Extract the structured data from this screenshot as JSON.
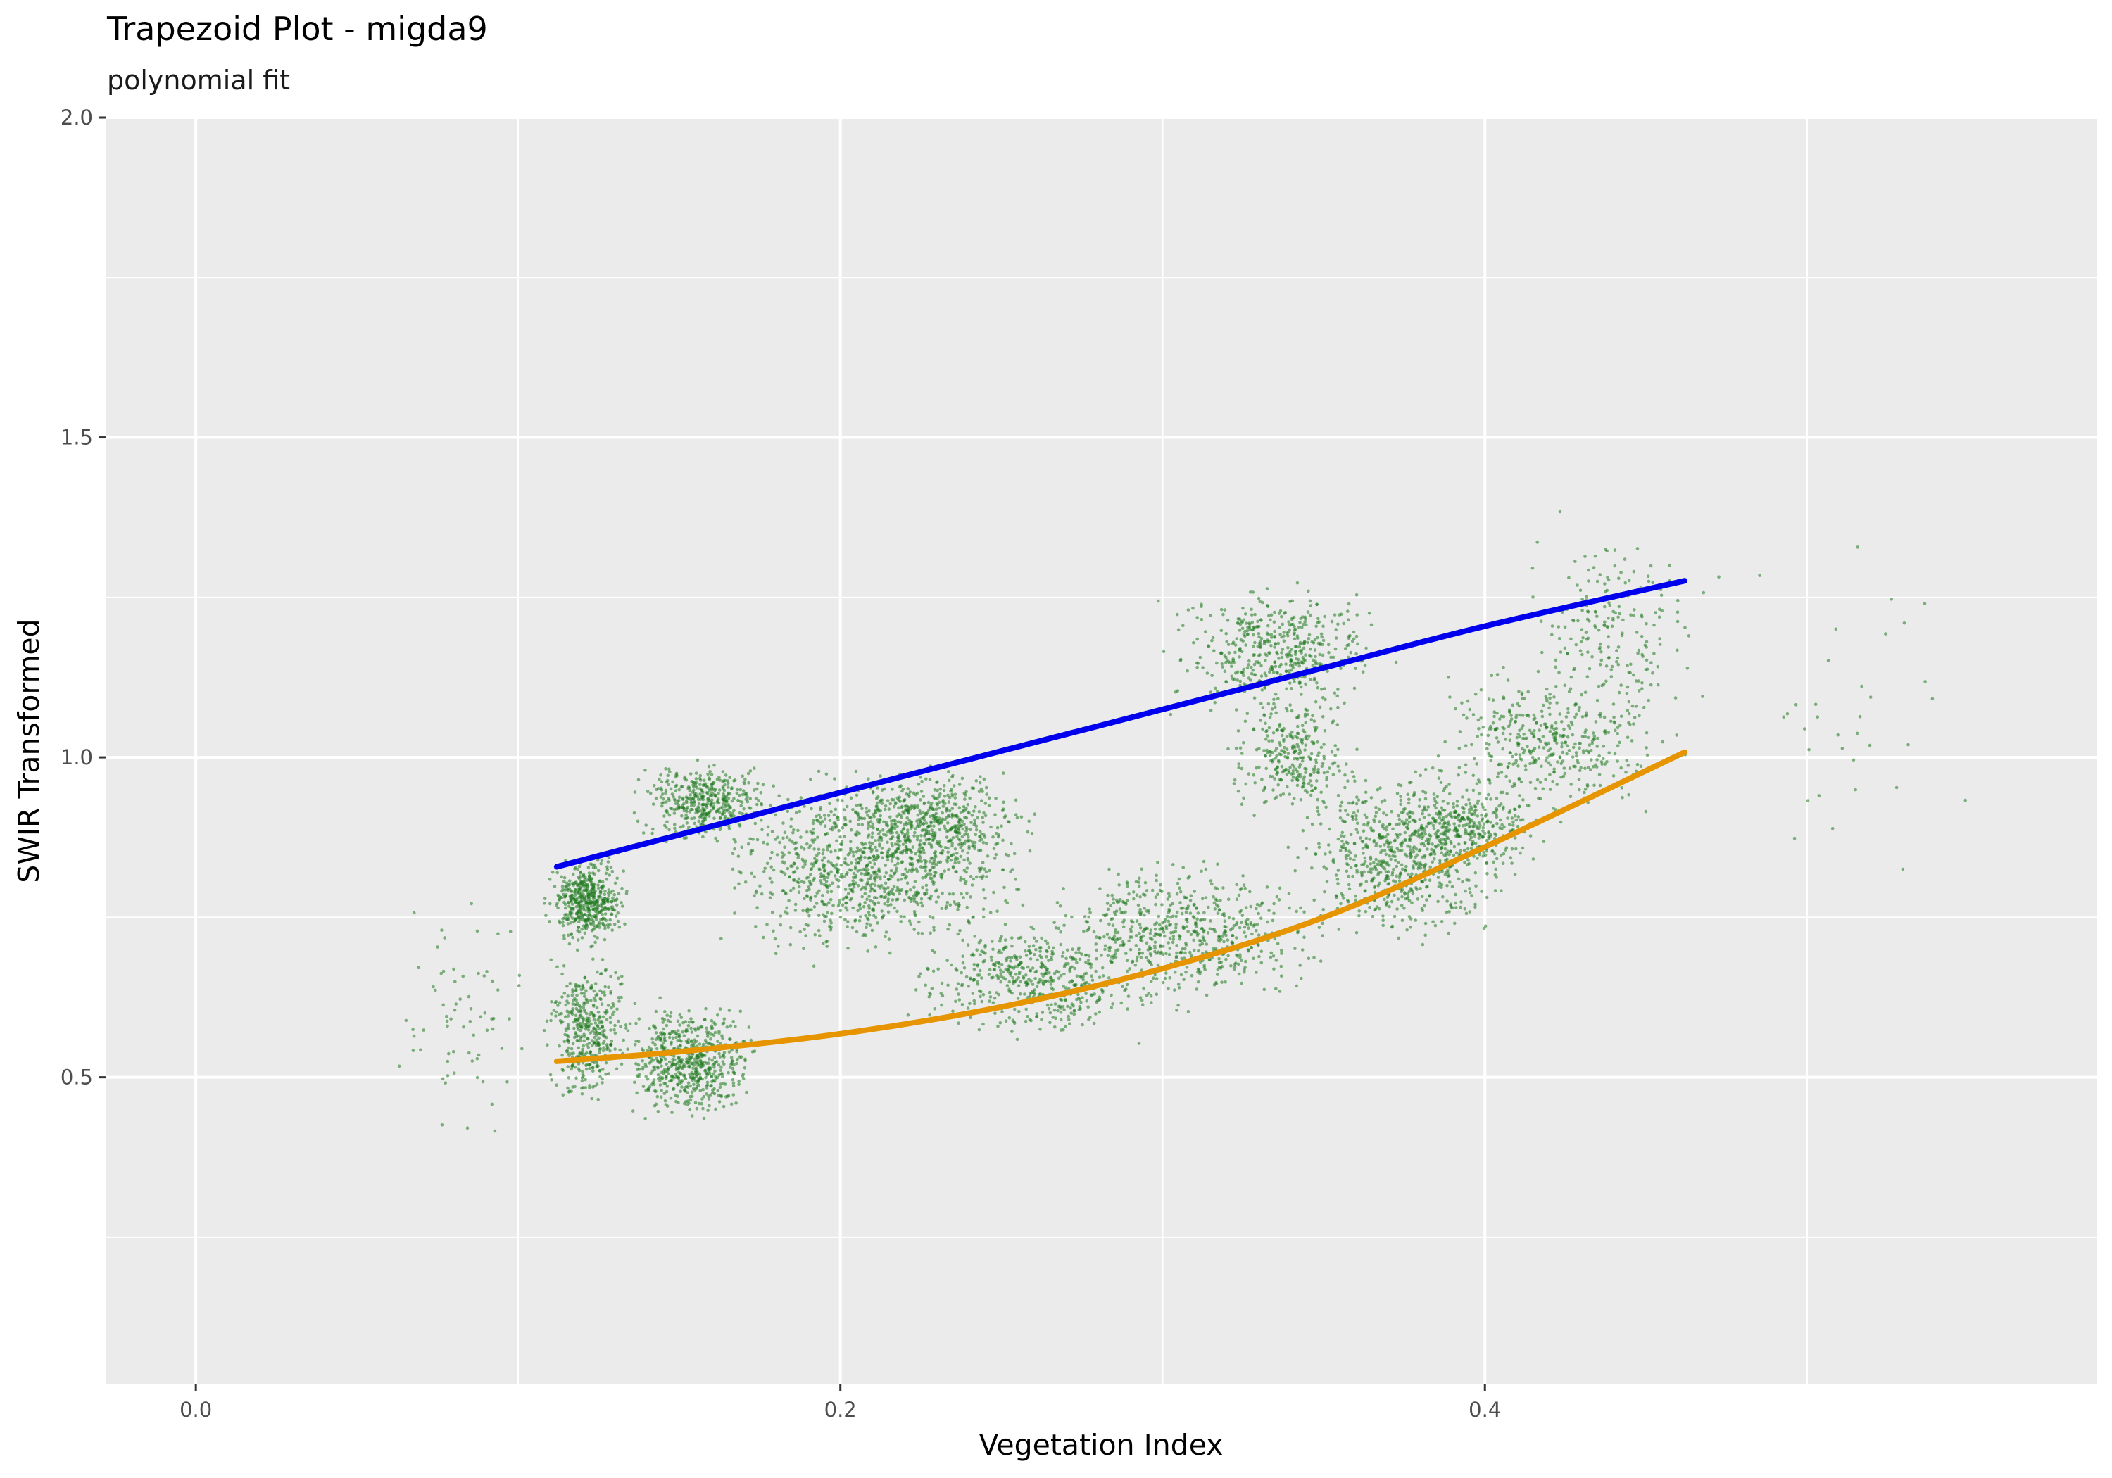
{
  "chart_data": {
    "type": "scatter",
    "title": "Trapezoid Plot -  migda9",
    "subtitle": "polynomial fit",
    "xlabel": "Vegetation Index",
    "ylabel": "SWIR Transformed",
    "xlim": [
      -0.028,
      0.59
    ],
    "ylim": [
      0.02,
      2.0
    ],
    "x_ticks": [
      0.0,
      0.2,
      0.4
    ],
    "x_tick_labels": [
      "0.0",
      "0.2",
      "0.4"
    ],
    "y_ticks": [
      0.5,
      1.0,
      1.5,
      2.0
    ],
    "y_tick_labels": [
      "0.5",
      "1.0",
      "1.5",
      "2.0"
    ],
    "grid": true,
    "legend": "none",
    "colors": {
      "panel": "#ebebeb",
      "grid": "#ffffff",
      "points": "#1f7a1f",
      "upper_fit": "#0000ee",
      "lower_fit": "#e69500"
    },
    "series": [
      {
        "kind": "points",
        "clusters": [
          {
            "x": [
              0.108,
              0.135
            ],
            "y": [
              0.7,
              0.85
            ],
            "weight": 0.07
          },
          {
            "x": [
              0.108,
              0.135
            ],
            "y": [
              0.45,
              0.7
            ],
            "weight": 0.06
          },
          {
            "x": [
              0.13,
              0.175
            ],
            "y": [
              0.43,
              0.62
            ],
            "weight": 0.09
          },
          {
            "x": [
              0.135,
              0.18
            ],
            "y": [
              0.86,
              1.0
            ],
            "weight": 0.06
          },
          {
            "x": [
              0.16,
              0.26
            ],
            "y": [
              0.68,
              0.98
            ],
            "weight": 0.15
          },
          {
            "x": [
              0.2,
              0.26
            ],
            "y": [
              0.8,
              1.0
            ],
            "weight": 0.06
          },
          {
            "x": [
              0.22,
              0.3
            ],
            "y": [
              0.55,
              0.75
            ],
            "weight": 0.07
          },
          {
            "x": [
              0.26,
              0.35
            ],
            "y": [
              0.6,
              0.85
            ],
            "weight": 0.09
          },
          {
            "x": [
              0.3,
              0.37
            ],
            "y": [
              1.05,
              1.28
            ],
            "weight": 0.07
          },
          {
            "x": [
              0.32,
              0.36
            ],
            "y": [
              0.9,
              1.1
            ],
            "weight": 0.04
          },
          {
            "x": [
              0.34,
              0.41
            ],
            "y": [
              0.7,
              1.0
            ],
            "weight": 0.1
          },
          {
            "x": [
              0.37,
              0.42
            ],
            "y": [
              0.82,
              0.95
            ],
            "weight": 0.04
          },
          {
            "x": [
              0.38,
              0.46
            ],
            "y": [
              0.9,
              1.15
            ],
            "weight": 0.06
          },
          {
            "x": [
              0.41,
              0.47
            ],
            "y": [
              1.0,
              1.38
            ],
            "weight": 0.03
          },
          {
            "x": [
              0.06,
              0.105
            ],
            "y": [
              0.35,
              0.8
            ],
            "weight": 0.01
          },
          {
            "x": [
              0.47,
              0.56
            ],
            "y": [
              0.75,
              1.38
            ],
            "weight": 0.005
          }
        ],
        "sample_size": 7000
      },
      {
        "kind": "line",
        "x": [
          0.112,
          0.15,
          0.2,
          0.25,
          0.3,
          0.35,
          0.4,
          0.462
        ],
        "y": [
          0.829,
          0.879,
          0.945,
          1.01,
          1.075,
          1.14,
          1.205,
          1.276
        ]
      },
      {
        "kind": "line",
        "x": [
          0.112,
          0.15,
          0.2,
          0.25,
          0.3,
          0.35,
          0.4,
          0.462
        ],
        "y": [
          0.525,
          0.54,
          0.568,
          0.61,
          0.67,
          0.75,
          0.86,
          1.008
        ]
      }
    ]
  }
}
